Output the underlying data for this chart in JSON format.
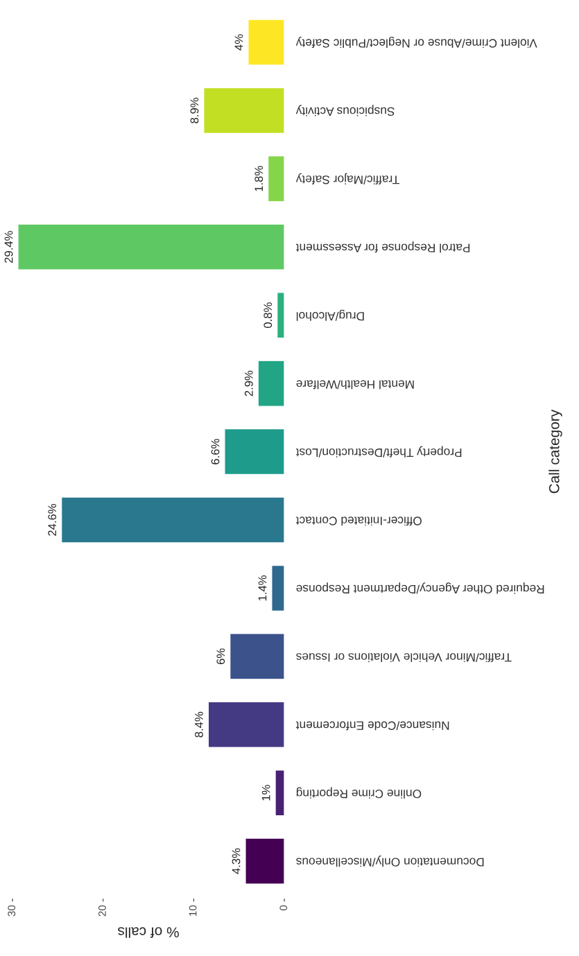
{
  "chart_data": {
    "type": "bar",
    "orientation": "horizontal",
    "xlabel": "% of calls",
    "ylabel": "Call category",
    "categories": [
      "Violent Crime/Abuse or Neglect/Public Safety",
      "Suspicious Activity",
      "Traffic/Major Safety",
      "Patrol Response for Assessment",
      "Drug/Alcohol",
      "Mental Health/Welfare",
      "Property Theft/Destruction/Lost",
      "Officer-Initiated Contact",
      "Required Other Agency/Department Response",
      "Traffic/Minor Vehicle Violations or Issues",
      "Nuisance/Code Enforcement",
      "Online Crime Reporting",
      "Documentation Only/Miscellaneous"
    ],
    "values": [
      4,
      8.9,
      1.8,
      29.4,
      0.8,
      2.9,
      6.6,
      24.6,
      1.4,
      6,
      8.4,
      1,
      4.3
    ],
    "value_labels": [
      "4%",
      "8.9%",
      "1.8%",
      "29.4%",
      "0.8%",
      "2.9%",
      "6.6%",
      "24.6%",
      "1.4%",
      "6%",
      "8.4%",
      "1%",
      "4.3%"
    ],
    "colors": [
      "#fde725",
      "#c2df23",
      "#85d54a",
      "#5ec962",
      "#2bb07f",
      "#21a585",
      "#1e9b8a",
      "#2a788e",
      "#31688e",
      "#3b528b",
      "#443a83",
      "#482173",
      "#440154"
    ],
    "xlim": [
      30,
      0
    ],
    "xticks": [
      0,
      10,
      20,
      30
    ],
    "grid": false,
    "legend": false
  }
}
